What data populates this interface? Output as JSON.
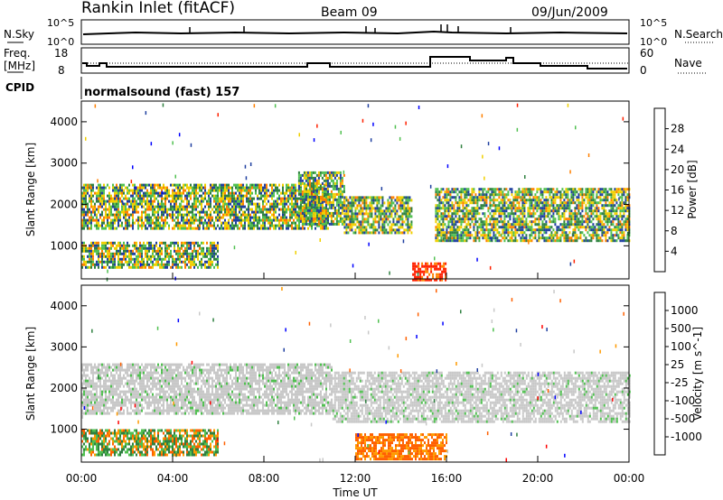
{
  "header": {
    "station": "Rankin Inlet (fitACF)",
    "beam": "Beam 09",
    "date": "09/Jun/2009"
  },
  "nsky_panel": {
    "left_label": "N.Sky",
    "left_ticks": [
      "10^5",
      "10^0"
    ],
    "right_ticks": [
      "10^5",
      "10^0"
    ],
    "right_label": "N.Search"
  },
  "freq_panel": {
    "left_label_line1": "Freq.",
    "left_label_line2": "[MHz]",
    "left_ticks": [
      "18",
      "8"
    ],
    "right_ticks": [
      "60",
      "0"
    ],
    "right_label": "Nave"
  },
  "cpid_panel": {
    "label": "CPID",
    "program": "normalsound (fast) 157"
  },
  "x_axis": {
    "title": "Time UT",
    "ticks": [
      "00:00",
      "04:00",
      "08:00",
      "12:00",
      "16:00",
      "20:00",
      "00:00"
    ]
  },
  "chart_data": [
    {
      "type": "heatmap",
      "name": "power",
      "ylabel": "Slant Range [km]",
      "yticks": [
        "1000",
        "2000",
        "3000",
        "4000"
      ],
      "ylim": [
        200,
        4500
      ],
      "xlim": [
        0,
        24
      ],
      "colorbar": {
        "label": "Power [dB]",
        "ticks": [
          "28",
          "24",
          "20",
          "16",
          "12",
          "8",
          "4"
        ],
        "colors": [
          "#0000ff",
          "#1f3fa0",
          "#2f8040",
          "#50c050",
          "#f0d000",
          "#ff8000",
          "#ff2000"
        ]
      },
      "bands": [
        {
          "t0": 0,
          "t1": 10.8,
          "r_lo": 1400,
          "r_hi": 2500,
          "level": "medium"
        },
        {
          "t0": 9.5,
          "t1": 11.5,
          "r_lo": 1500,
          "r_hi": 2800,
          "level": "medium"
        },
        {
          "t0": 11.5,
          "t1": 14.5,
          "r_lo": 1300,
          "r_hi": 2200,
          "level": "medium"
        },
        {
          "t0": 15.5,
          "t1": 24,
          "r_lo": 1100,
          "r_hi": 2400,
          "level": "medium"
        },
        {
          "t0": 0,
          "t1": 6,
          "r_lo": 500,
          "r_hi": 1100,
          "level": "medium"
        },
        {
          "t0": 14.5,
          "t1": 16,
          "r_lo": 200,
          "r_hi": 600,
          "level": "strong"
        }
      ]
    },
    {
      "type": "heatmap",
      "name": "velocity",
      "ylabel": "Slant Range [km]",
      "yticks": [
        "1000",
        "2000",
        "3000",
        "4000"
      ],
      "ylim": [
        200,
        4500
      ],
      "xlim": [
        0,
        24
      ],
      "colorbar": {
        "label": "Velocity [m s^-1]",
        "ticks": [
          "1000",
          "500",
          "100",
          "25",
          "-25",
          "-100",
          "-500",
          "-1000"
        ],
        "colors": [
          "#ff0000",
          "#ff6000",
          "#ff9a00",
          "#c8c8c8",
          "#c8c8c8",
          "#50c050",
          "#2f8040",
          "#1f3fa0",
          "#0000ff"
        ]
      },
      "bands": [
        {
          "t0": 0,
          "t1": 11,
          "r_lo": 1400,
          "r_hi": 2600,
          "level": "near-zero"
        },
        {
          "t0": 11,
          "t1": 24,
          "r_lo": 1200,
          "r_hi": 2400,
          "level": "near-zero"
        },
        {
          "t0": 0,
          "t1": 6,
          "r_lo": 400,
          "r_hi": 1000,
          "level": "mixed"
        },
        {
          "t0": 12,
          "t1": 16,
          "r_lo": 300,
          "r_hi": 900,
          "level": "negative"
        }
      ]
    }
  ]
}
